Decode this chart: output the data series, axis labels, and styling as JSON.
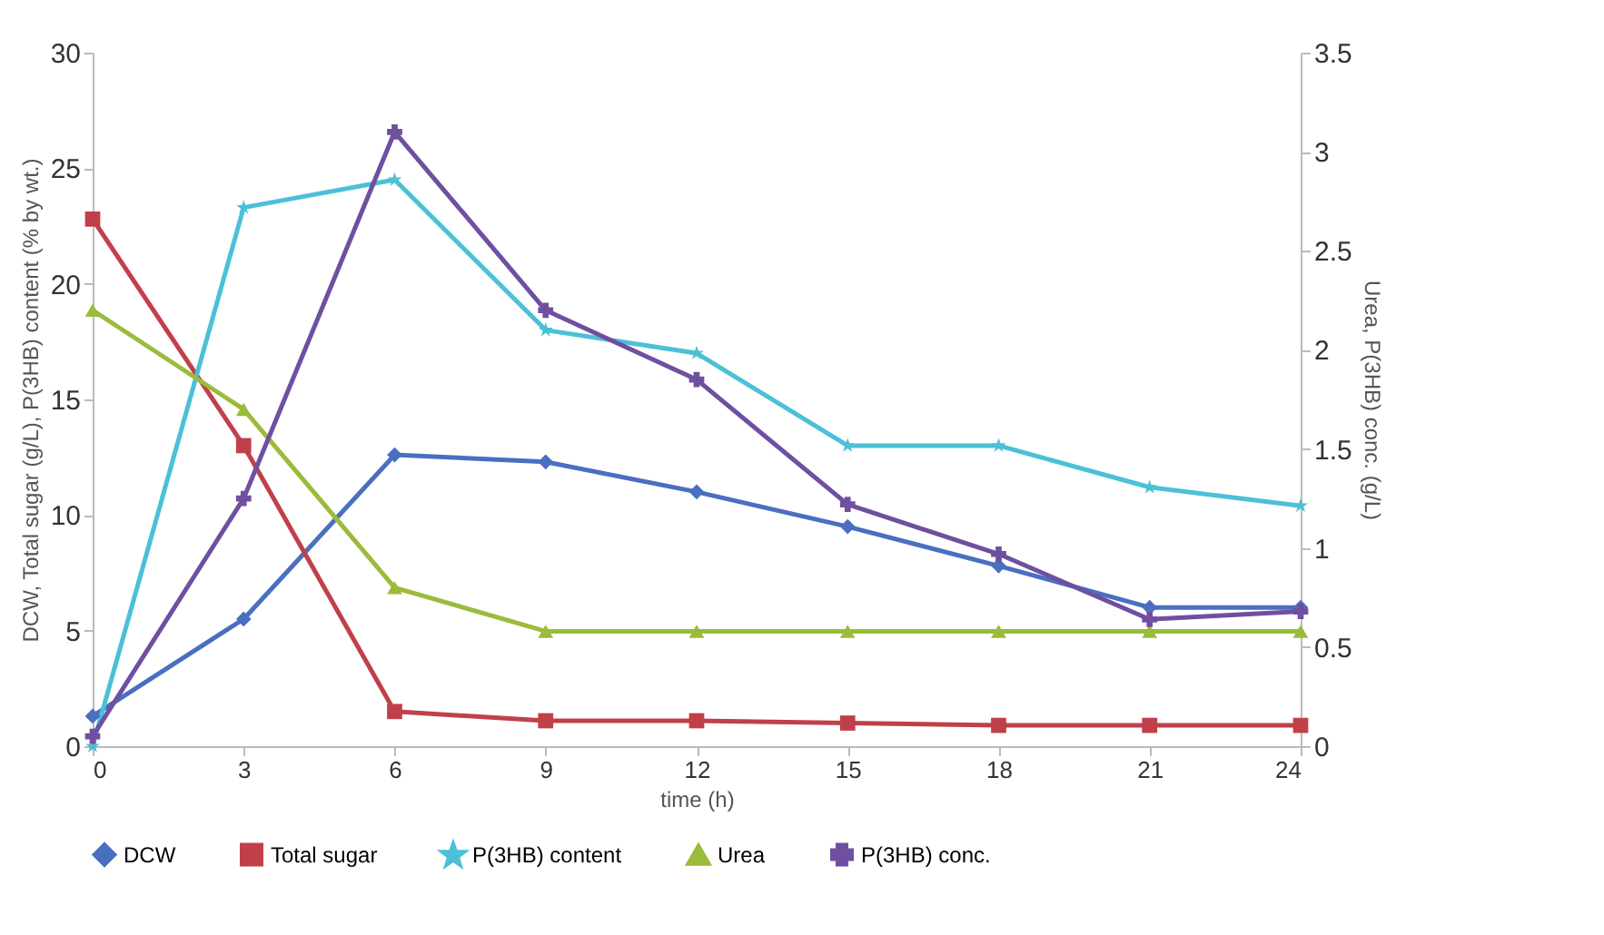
{
  "chart_data": {
    "type": "line",
    "xlabel": "time (h)",
    "ylabel": "DCW, Total sugar (g/L), P(3HB) content (% by wt.)",
    "y2label": "Urea, P(3HB) conc. (g/L)",
    "x": [
      0,
      3,
      6,
      9,
      12,
      15,
      18,
      21,
      24
    ],
    "series": [
      {
        "name": "DCW",
        "color": "#4a6fc0",
        "marker": "diamond",
        "values": [
          1.3,
          5.5,
          12.6,
          12.3,
          11,
          9.5,
          7.8,
          6,
          6
        ]
      },
      {
        "name": "Total sugar",
        "color": "#c0404a",
        "marker": "square",
        "values": [
          22.8,
          13,
          1.5,
          1.1,
          1.1,
          1.0,
          0.9,
          0.9,
          0.9
        ]
      },
      {
        "name": "P(3HB) content",
        "color": "#4bc0d6",
        "marker": "star",
        "values": [
          0,
          23.3,
          24.5,
          18,
          17,
          13,
          13,
          11.2,
          10.4
        ]
      },
      {
        "name": "Urea",
        "color": "#9bbb3b",
        "marker": "triangle",
        "axis": "y2",
        "values": [
          2.2,
          1.7,
          0.8,
          0.58,
          0.58,
          0.58,
          0.58,
          0.58,
          0.58
        ]
      },
      {
        "name": "P(3HB) conc.",
        "color": "#6f4fa0",
        "marker": "cross",
        "axis": "y2",
        "values": [
          0.05,
          1.25,
          3.1,
          2.2,
          1.85,
          1.22,
          0.97,
          0.64,
          0.68
        ]
      }
    ],
    "xlim": [
      0,
      24
    ],
    "xticks": [
      0,
      3,
      6,
      9,
      12,
      15,
      18,
      21,
      24
    ],
    "ylim": [
      0,
      30
    ],
    "yticks": [
      0,
      5,
      10,
      15,
      20,
      25,
      30
    ],
    "y2lim": [
      0,
      3.5
    ],
    "y2ticks": [
      0,
      0.5,
      1,
      1.5,
      2,
      2.5,
      3,
      3.5
    ],
    "grid": false,
    "legend": "bottom",
    "line_style": "solid"
  }
}
